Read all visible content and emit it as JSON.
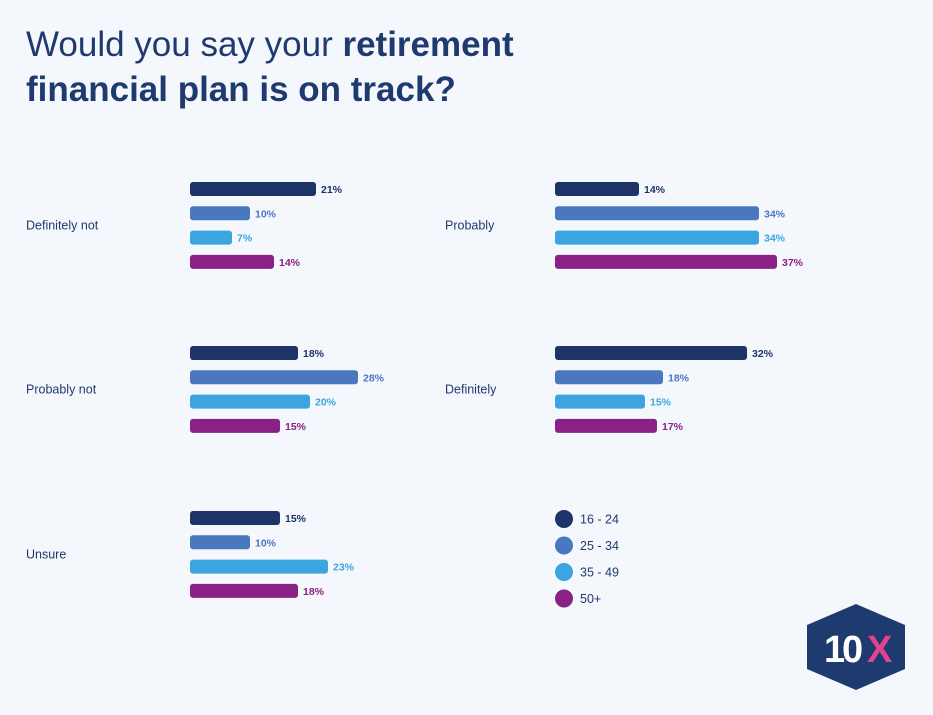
{
  "title": {
    "part1": "Would you say your ",
    "part2": "retirement",
    "part3": "financial plan is on track?"
  },
  "logo": {
    "text_1": "1",
    "text_0": "0",
    "text_x": "X"
  },
  "colors": {
    "background": "#f4f7fc",
    "title": "#1f3a6e",
    "label": "#1f3a6e",
    "logo_bg": "#1f3a6e",
    "logo_x": "#e0448f"
  },
  "chart_data": {
    "type": "bar",
    "orientation": "horizontal",
    "title": "Would you say your retirement financial plan is on track?",
    "value_suffix": "%",
    "series": [
      {
        "name": "16 - 24",
        "color": "#1e3466"
      },
      {
        "name": "25 - 34",
        "color": "#4a78bf"
      },
      {
        "name": "35 - 49",
        "color": "#3aa5e0"
      },
      {
        "name": "50+",
        "color": "#8a2185"
      }
    ],
    "groups": [
      {
        "label": "Definitely not",
        "values": [
          21,
          10,
          7,
          14
        ]
      },
      {
        "label": "Probably not",
        "values": [
          18,
          28,
          20,
          15
        ]
      },
      {
        "label": "Unsure",
        "values": [
          15,
          10,
          23,
          18
        ]
      },
      {
        "label": "Probably",
        "values": [
          14,
          34,
          34,
          37
        ]
      },
      {
        "label": "Definitely",
        "values": [
          32,
          18,
          15,
          17
        ]
      }
    ]
  }
}
